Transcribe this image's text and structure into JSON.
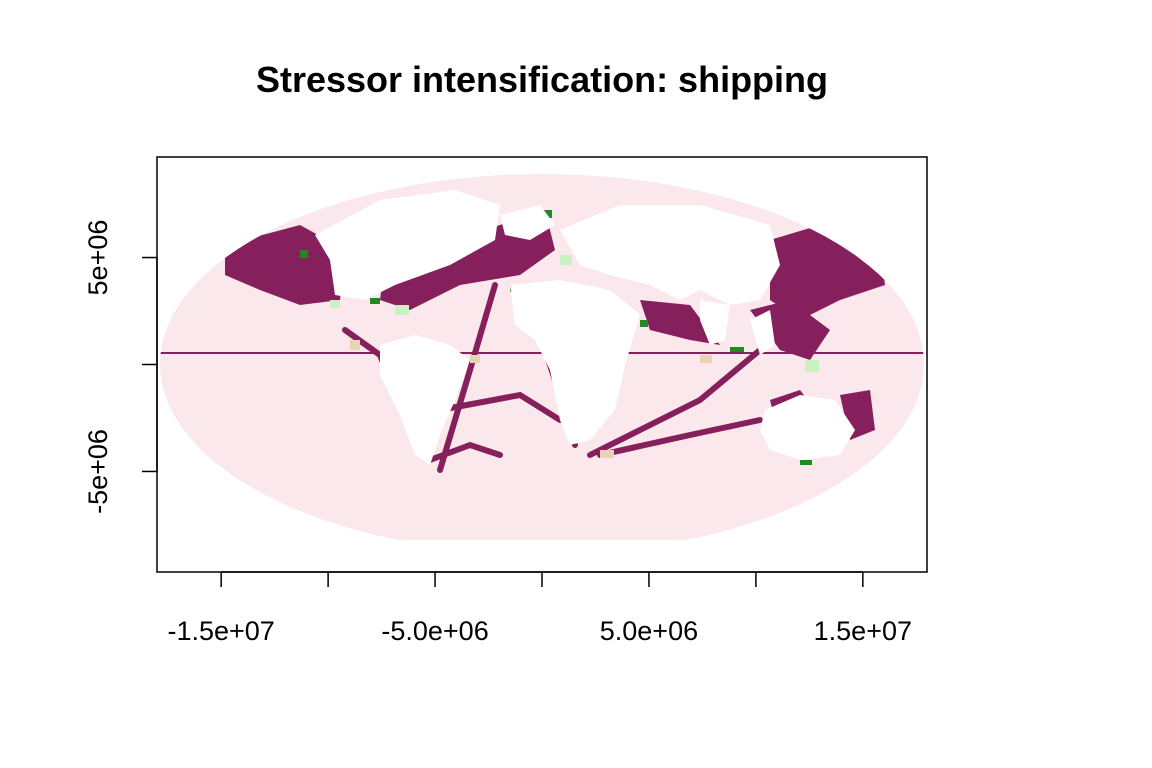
{
  "title": "Stressor intensification: shipping",
  "colors": {
    "ocean_background": "#fbe8ec",
    "land": "#ffffff",
    "high": "#86205c",
    "low_pale_green": "#c9f2c3",
    "low_green": "#1f8a1f",
    "low_tan": "#e8d3b6",
    "axis": "#000000"
  },
  "projection": "Mollweide",
  "x_axis": {
    "range": [
      -18000000,
      18000000
    ],
    "ticks": [
      -15000000.0,
      -10000000.0,
      -5000000.0,
      0,
      5000000.0,
      10000000.0,
      15000000.0
    ],
    "tick_labels": [
      {
        "value": -15000000.0,
        "label": "-1.5e+07"
      },
      {
        "value": -5000000.0,
        "label": "-5.0e+06"
      },
      {
        "value": 5000000.0,
        "label": "5.0e+06"
      },
      {
        "value": 15000000.0,
        "label": "1.5e+07"
      }
    ]
  },
  "y_axis": {
    "range": [
      -9700000,
      9700000
    ],
    "ticks": [
      -5000000.0,
      0,
      5000000.0
    ],
    "tick_labels": [
      {
        "value": 5000000.0,
        "label": "5e+06"
      },
      {
        "value": -5000000.0,
        "label": "-5e+06"
      }
    ]
  }
}
